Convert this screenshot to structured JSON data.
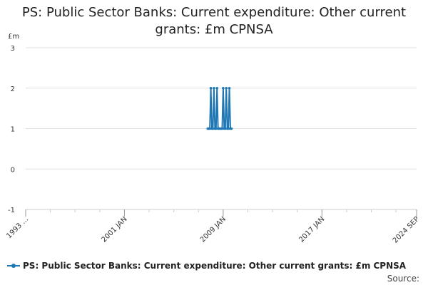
{
  "chart_data": {
    "type": "line",
    "title": "PS: Public Sector Banks: Current expenditure: Other current grants: £m CPNSA",
    "ylabel": "£m",
    "xlabel": "",
    "ylim": [
      -1,
      3
    ],
    "yticks": [
      -1,
      0,
      1,
      2,
      3
    ],
    "xlim": [
      "1993-01",
      "2024-09"
    ],
    "xticks": [
      {
        "value": "1993-01",
        "label": "1993 ..."
      },
      {
        "value": "2001-01",
        "label": "2001 JAN"
      },
      {
        "value": "2009-01",
        "label": "2009 JAN"
      },
      {
        "value": "2017-01",
        "label": "2017 JAN"
      },
      {
        "value": "2024-09",
        "label": "2024 SEP"
      }
    ],
    "grid": true,
    "legend_position": "bottom-left",
    "series": [
      {
        "name": "PS: Public Sector Banks: Current expenditure: Other current grants: £m CPNSA",
        "color": "#1f77b4",
        "points": [
          {
            "x": "2007-10",
            "y": 1
          },
          {
            "x": "2007-11",
            "y": 1
          },
          {
            "x": "2007-12",
            "y": 1
          },
          {
            "x": "2008-01",
            "y": 2
          },
          {
            "x": "2008-02",
            "y": 1
          },
          {
            "x": "2008-03",
            "y": 1
          },
          {
            "x": "2008-04",
            "y": 2
          },
          {
            "x": "2008-05",
            "y": 1
          },
          {
            "x": "2008-06",
            "y": 1
          },
          {
            "x": "2008-07",
            "y": 2
          },
          {
            "x": "2008-08",
            "y": 1
          },
          {
            "x": "2008-09",
            "y": 1
          },
          {
            "x": "2008-10",
            "y": 1
          },
          {
            "x": "2008-11",
            "y": 1
          },
          {
            "x": "2008-12",
            "y": 1
          },
          {
            "x": "2009-01",
            "y": 2
          },
          {
            "x": "2009-02",
            "y": 1
          },
          {
            "x": "2009-03",
            "y": 1
          },
          {
            "x": "2009-04",
            "y": 2
          },
          {
            "x": "2009-05",
            "y": 1
          },
          {
            "x": "2009-06",
            "y": 1
          },
          {
            "x": "2009-07",
            "y": 2
          },
          {
            "x": "2009-08",
            "y": 1
          },
          {
            "x": "2009-09",
            "y": 1
          }
        ]
      }
    ]
  },
  "source_label": "Source:"
}
